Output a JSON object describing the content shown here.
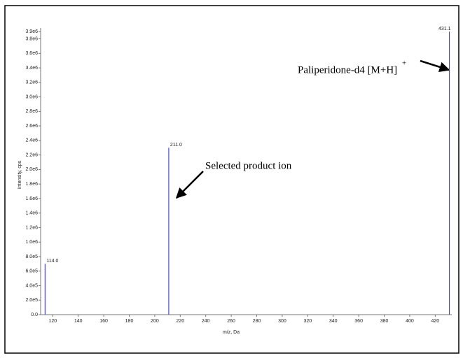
{
  "chart_data": {
    "type": "stem",
    "x_label": "m/z, Da",
    "y_label": "Intensity, cps",
    "x": [
      114,
      211,
      431.1
    ],
    "x_labels": [
      "114.0",
      "211.0",
      "431.1"
    ],
    "values": [
      700000,
      2300000,
      3900000
    ],
    "color": "#4b4bc8",
    "xlim": [
      110.5,
      433
    ],
    "ylim": [
      0,
      3950000
    ],
    "xticks": [
      120,
      140,
      160,
      180,
      200,
      220,
      240,
      260,
      280,
      300,
      320,
      340,
      360,
      380,
      400,
      420
    ],
    "yticks": [
      {
        "value": 0,
        "label": "0.0"
      },
      {
        "value": 200000,
        "label": "2.0e5"
      },
      {
        "value": 400000,
        "label": "4.0e5"
      },
      {
        "value": 600000,
        "label": "6.0e5"
      },
      {
        "value": 800000,
        "label": "8.0e5"
      },
      {
        "value": 1000000,
        "label": "1.0e6"
      },
      {
        "value": 1200000,
        "label": "1.2e6"
      },
      {
        "value": 1400000,
        "label": "1.4e6"
      },
      {
        "value": 1600000,
        "label": "1.6e6"
      },
      {
        "value": 1800000,
        "label": "1.8e6"
      },
      {
        "value": 2000000,
        "label": "2.0e6"
      },
      {
        "value": 2200000,
        "label": "2.2e6"
      },
      {
        "value": 2400000,
        "label": "2.4e6"
      },
      {
        "value": 2600000,
        "label": "2.6e6"
      },
      {
        "value": 2800000,
        "label": "2.8e6"
      },
      {
        "value": 3000000,
        "label": "3.0e6"
      },
      {
        "value": 3200000,
        "label": "3.2e6"
      },
      {
        "value": 3400000,
        "label": "3.4e6"
      },
      {
        "value": 3600000,
        "label": "3.6e6"
      },
      {
        "value": 3800000,
        "label": "3.8e6"
      },
      {
        "value": 3900000,
        "label": "3.9e6"
      }
    ],
    "annotations": [
      {
        "text": "Selected product ion"
      },
      {
        "text": "Paliperidone-d4 [M+H]",
        "superscript": "+"
      }
    ]
  }
}
